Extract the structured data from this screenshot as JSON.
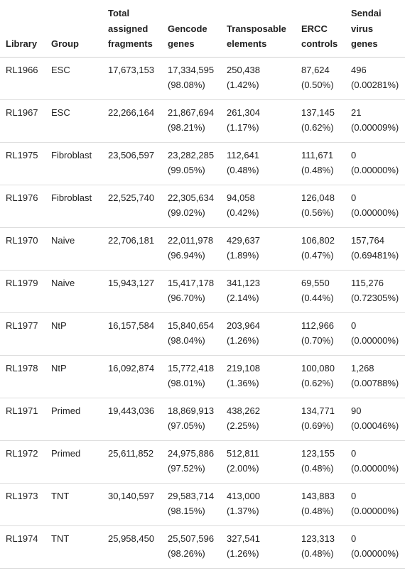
{
  "table": {
    "headers": [
      [
        "Library"
      ],
      [
        "Group"
      ],
      [
        "Total",
        "assigned",
        "fragments"
      ],
      [
        "Gencode",
        "genes"
      ],
      [
        "Transposable",
        "elements"
      ],
      [
        "ERCC",
        "controls"
      ],
      [
        "Sendai",
        "virus",
        "genes"
      ]
    ],
    "rows": [
      [
        "RL1966",
        "ESC",
        "17,673,153",
        "17,334,595",
        "(98.08%)",
        "250,438",
        "(1.42%)",
        "87,624",
        "(0.50%)",
        "496",
        "(0.00281%)"
      ],
      [
        "RL1967",
        "ESC",
        "22,266,164",
        "21,867,694",
        "(98.21%)",
        "261,304",
        "(1.17%)",
        "137,145",
        "(0.62%)",
        "21",
        "(0.00009%)"
      ],
      [
        "RL1975",
        "Fibroblast",
        "23,506,597",
        "23,282,285",
        "(99.05%)",
        "112,641",
        "(0.48%)",
        "111,671",
        "(0.48%)",
        "0",
        "(0.00000%)"
      ],
      [
        "RL1976",
        "Fibroblast",
        "22,525,740",
        "22,305,634",
        "(99.02%)",
        "94,058",
        "(0.42%)",
        "126,048",
        "(0.56%)",
        "0",
        "(0.00000%)"
      ],
      [
        "RL1970",
        "Naive",
        "22,706,181",
        "22,011,978",
        "(96.94%)",
        "429,637",
        "(1.89%)",
        "106,802",
        "(0.47%)",
        "157,764",
        "(0.69481%)"
      ],
      [
        "RL1979",
        "Naive",
        "15,943,127",
        "15,417,178",
        "(96.70%)",
        "341,123",
        "(2.14%)",
        "69,550",
        "(0.44%)",
        "115,276",
        "(0.72305%)"
      ],
      [
        "RL1977",
        "NtP",
        "16,157,584",
        "15,840,654",
        "(98.04%)",
        "203,964",
        "(1.26%)",
        "112,966",
        "(0.70%)",
        "0",
        "(0.00000%)"
      ],
      [
        "RL1978",
        "NtP",
        "16,092,874",
        "15,772,418",
        "(98.01%)",
        "219,108",
        "(1.36%)",
        "100,080",
        "(0.62%)",
        "1,268",
        "(0.00788%)"
      ],
      [
        "RL1971",
        "Primed",
        "19,443,036",
        "18,869,913",
        "(97.05%)",
        "438,262",
        "(2.25%)",
        "134,771",
        "(0.69%)",
        "90",
        "(0.00046%)"
      ],
      [
        "RL1972",
        "Primed",
        "25,611,852",
        "24,975,886",
        "(97.52%)",
        "512,811",
        "(2.00%)",
        "123,155",
        "(0.48%)",
        "0",
        "(0.00000%)"
      ],
      [
        "RL1973",
        "TNT",
        "30,140,597",
        "29,583,714",
        "(98.15%)",
        "413,000",
        "(1.37%)",
        "143,883",
        "(0.48%)",
        "0",
        "(0.00000%)"
      ],
      [
        "RL1974",
        "TNT",
        "25,958,450",
        "25,507,596",
        "(98.26%)",
        "327,541",
        "(1.26%)",
        "123,313",
        "(0.48%)",
        "0",
        "(0.00000%)"
      ]
    ]
  }
}
